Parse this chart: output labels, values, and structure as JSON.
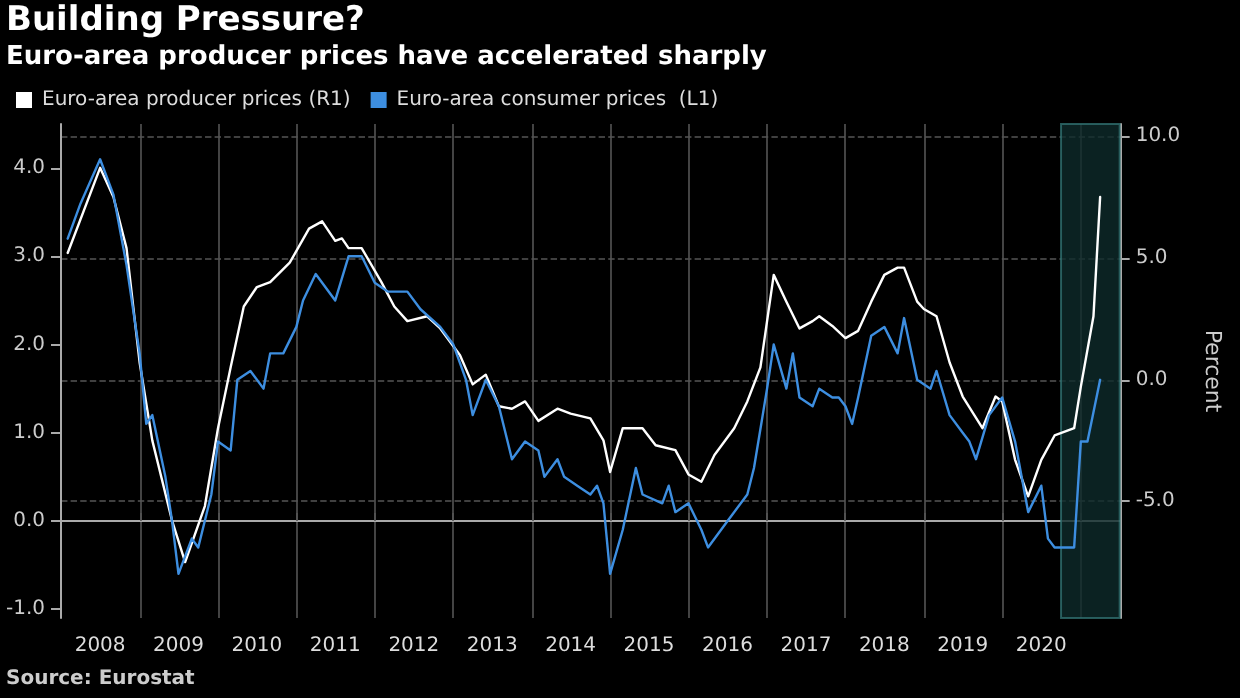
{
  "chart_data": {
    "type": "line",
    "title": "Building Pressure?",
    "subtitle": "Euro-area producer prices have accelerated sharply",
    "y2label": "Percent",
    "annotations": [
      "Source: Eurostat"
    ],
    "series": [
      {
        "name": "Euro-area producer prices (R1)",
        "color": "#ffffff",
        "axis": "y2",
        "x": [
          "2008-02",
          "2008-07",
          "2008-09",
          "2008-11",
          "2009-01",
          "2009-03",
          "2009-06",
          "2009-08",
          "2009-11",
          "2010-01",
          "2010-03",
          "2010-05",
          "2010-07",
          "2010-09",
          "2010-12",
          "2011-03",
          "2011-05",
          "2011-07",
          "2011-08",
          "2011-09",
          "2011-11",
          "2012-02",
          "2012-04",
          "2012-06",
          "2012-09",
          "2012-11",
          "2013-02",
          "2013-04",
          "2013-06",
          "2013-08",
          "2013-10",
          "2013-12",
          "2014-02",
          "2014-05",
          "2014-07",
          "2014-10",
          "2014-12",
          "2015-01",
          "2015-03",
          "2015-06",
          "2015-08",
          "2015-11",
          "2016-01",
          "2016-03",
          "2016-05",
          "2016-08",
          "2016-10",
          "2016-12",
          "2017-02",
          "2017-04",
          "2017-06",
          "2017-08",
          "2017-09",
          "2017-11",
          "2018-01",
          "2018-03",
          "2018-05",
          "2018-07",
          "2018-09",
          "2018-10",
          "2018-12",
          "2019-01",
          "2019-03",
          "2019-05",
          "2019-07",
          "2019-10",
          "2019-12",
          "2020-01",
          "2020-03",
          "2020-05",
          "2020-07",
          "2020-09",
          "2020-12",
          "2021-01",
          "2021-03",
          "2021-04"
        ],
        "values": [
          5.2,
          8.7,
          7.5,
          5.4,
          0.7,
          -2.5,
          -5.8,
          -7.5,
          -5.2,
          -2.0,
          0.5,
          3.0,
          3.8,
          4.0,
          4.8,
          6.2,
          6.5,
          5.7,
          5.8,
          5.4,
          5.4,
          4.0,
          3.0,
          2.4,
          2.6,
          2.1,
          1.0,
          -0.2,
          0.2,
          -1.1,
          -1.2,
          -0.9,
          -1.7,
          -1.2,
          -1.4,
          -1.6,
          -2.5,
          -3.8,
          -2.0,
          -2.0,
          -2.7,
          -2.9,
          -3.9,
          -4.2,
          -3.1,
          -2.0,
          -0.9,
          0.5,
          4.3,
          3.2,
          2.1,
          2.4,
          2.6,
          2.2,
          1.7,
          2.0,
          3.2,
          4.3,
          4.6,
          4.6,
          3.2,
          2.9,
          2.6,
          0.7,
          -0.7,
          -2.0,
          -0.7,
          -0.9,
          -3.3,
          -4.8,
          -3.3,
          -2.3,
          -2.0,
          -0.3,
          2.6,
          7.5
        ]
      },
      {
        "name": "Euro-area consumer prices  (L1)",
        "color": "#3d8ee0",
        "x": [
          "2008-02",
          "2008-04",
          "2008-07",
          "2008-09",
          "2008-11",
          "2009-01",
          "2009-02",
          "2009-03",
          "2009-05",
          "2009-06",
          "2009-07",
          "2009-09",
          "2009-10",
          "2009-12",
          "2010-01",
          "2010-03",
          "2010-04",
          "2010-06",
          "2010-08",
          "2010-09",
          "2010-11",
          "2011-01",
          "2011-02",
          "2011-04",
          "2011-05",
          "2011-07",
          "2011-09",
          "2011-11",
          "2012-01",
          "2012-03",
          "2012-06",
          "2012-08",
          "2012-11",
          "2013-01",
          "2013-03",
          "2013-04",
          "2013-06",
          "2013-08",
          "2013-10",
          "2013-12",
          "2014-02",
          "2014-03",
          "2014-05",
          "2014-06",
          "2014-08",
          "2014-10",
          "2014-11",
          "2014-12",
          "2015-01",
          "2015-03",
          "2015-05",
          "2015-06",
          "2015-09",
          "2015-10",
          "2015-11",
          "2016-01",
          "2016-03",
          "2016-04",
          "2016-07",
          "2016-10",
          "2016-11",
          "2017-01",
          "2017-02",
          "2017-04",
          "2017-05",
          "2017-06",
          "2017-08",
          "2017-09",
          "2017-11",
          "2017-12",
          "2018-01",
          "2018-02",
          "2018-03",
          "2018-05",
          "2018-07",
          "2018-09",
          "2018-10",
          "2018-12",
          "2019-02",
          "2019-03",
          "2019-05",
          "2019-07",
          "2019-08",
          "2019-09",
          "2019-11",
          "2020-01",
          "2020-03",
          "2020-05",
          "2020-07",
          "2020-08",
          "2020-09",
          "2020-12",
          "2021-01",
          "2021-02",
          "2021-04"
        ],
        "values": [
          3.2,
          3.6,
          4.1,
          3.7,
          2.9,
          1.9,
          1.1,
          1.2,
          0.5,
          0.0,
          -0.6,
          -0.2,
          -0.3,
          0.3,
          0.9,
          0.8,
          1.6,
          1.7,
          1.5,
          1.9,
          1.9,
          2.2,
          2.5,
          2.8,
          2.7,
          2.5,
          3.0,
          3.0,
          2.7,
          2.6,
          2.6,
          2.4,
          2.2,
          2.0,
          1.6,
          1.2,
          1.6,
          1.3,
          0.7,
          0.9,
          0.8,
          0.5,
          0.7,
          0.5,
          0.4,
          0.3,
          0.4,
          0.2,
          -0.6,
          -0.1,
          0.6,
          0.3,
          0.2,
          0.4,
          0.1,
          0.2,
          -0.1,
          -0.3,
          0.0,
          0.3,
          0.6,
          1.5,
          2.0,
          1.5,
          1.9,
          1.4,
          1.3,
          1.5,
          1.4,
          1.4,
          1.3,
          1.1,
          1.4,
          2.1,
          2.2,
          1.9,
          2.3,
          1.6,
          1.5,
          1.7,
          1.2,
          1.0,
          0.9,
          0.7,
          1.2,
          1.4,
          0.9,
          0.1,
          0.4,
          -0.2,
          -0.3,
          -0.3,
          0.9,
          0.9,
          1.6
        ]
      }
    ],
    "xlim": [
      "2008-01",
      "2021-07"
    ],
    "xticks": [
      {
        "value": "2008-07",
        "label": "2008"
      },
      {
        "value": "2009-01",
        "label": null
      },
      {
        "value": "2009-07",
        "label": "2009"
      },
      {
        "value": "2010-01",
        "label": null
      },
      {
        "value": "2010-07",
        "label": "2010"
      },
      {
        "value": "2011-01",
        "label": null
      },
      {
        "value": "2011-07",
        "label": "2011"
      },
      {
        "value": "2012-01",
        "label": null
      },
      {
        "value": "2012-07",
        "label": "2012"
      },
      {
        "value": "2013-01",
        "label": null
      },
      {
        "value": "2013-07",
        "label": "2013"
      },
      {
        "value": "2014-01",
        "label": null
      },
      {
        "value": "2014-07",
        "label": "2014"
      },
      {
        "value": "2015-01",
        "label": null
      },
      {
        "value": "2015-07",
        "label": "2015"
      },
      {
        "value": "2016-01",
        "label": null
      },
      {
        "value": "2016-07",
        "label": "2016"
      },
      {
        "value": "2017-01",
        "label": null
      },
      {
        "value": "2017-07",
        "label": "2017"
      },
      {
        "value": "2018-01",
        "label": null
      },
      {
        "value": "2018-07",
        "label": "2018"
      },
      {
        "value": "2019-01",
        "label": null
      },
      {
        "value": "2019-07",
        "label": "2019"
      },
      {
        "value": "2020-01",
        "label": null
      },
      {
        "value": "2020-07",
        "label": "2020"
      },
      {
        "value": "2021-01",
        "label": null
      }
    ],
    "ylim": [
      -1.1,
      4.5
    ],
    "yticks": [
      {
        "value": 4,
        "label": "4.0"
      },
      {
        "value": 3,
        "label": "3.0"
      },
      {
        "value": 2,
        "label": "2.0"
      },
      {
        "value": 1,
        "label": "1.0"
      },
      {
        "value": 0,
        "label": "0.0"
      },
      {
        "value": -1,
        "label": "-1.0"
      }
    ],
    "y2lim": [
      -9.8,
      10.5
    ],
    "y2ticks": [
      {
        "value": 10,
        "label": "10.0"
      },
      {
        "value": 5,
        "label": "5.0"
      },
      {
        "value": 0,
        "label": "0.0"
      },
      {
        "value": -5,
        "label": "-5.0"
      }
    ],
    "bands": [
      {
        "axis": "x",
        "from": "2020-10",
        "to": "2021-07",
        "color": "#0e2b2b"
      }
    ],
    "grid": true,
    "legend": "top left",
    "marker": "none",
    "line_style": "solid"
  }
}
